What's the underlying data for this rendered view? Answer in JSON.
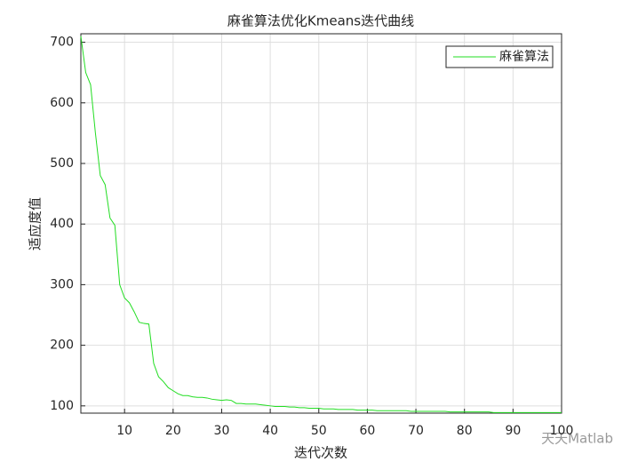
{
  "chart_data": {
    "type": "line",
    "title": "麻雀算法优化Kmeans迭代曲线",
    "x_label": "迭代次数",
    "y_label": "适应度值",
    "x": [
      1,
      2,
      3,
      4,
      5,
      6,
      7,
      8,
      9,
      10,
      11,
      12,
      13,
      14,
      15,
      16,
      17,
      18,
      19,
      20,
      21,
      22,
      23,
      24,
      25,
      26,
      27,
      28,
      29,
      30,
      31,
      32,
      33,
      34,
      35,
      36,
      37,
      38,
      39,
      40,
      41,
      42,
      43,
      44,
      45,
      46,
      47,
      48,
      49,
      50,
      51,
      52,
      53,
      54,
      55,
      56,
      57,
      58,
      59,
      60,
      61,
      62,
      63,
      64,
      65,
      66,
      67,
      68,
      69,
      70,
      71,
      72,
      73,
      74,
      75,
      76,
      77,
      78,
      79,
      80,
      81,
      82,
      83,
      84,
      85,
      86,
      87,
      88,
      89,
      90,
      91,
      92,
      93,
      94,
      95,
      96,
      97,
      98,
      99,
      100
    ],
    "series": [
      {
        "name": "麻雀算法",
        "color": "#22dd22",
        "values": [
          710,
          650,
          630,
          550,
          480,
          465,
          410,
          398,
          300,
          278,
          270,
          255,
          238,
          236,
          235,
          170,
          148,
          140,
          130,
          125,
          120,
          117,
          117,
          115,
          114,
          114,
          113,
          111,
          110,
          109,
          110,
          109,
          104,
          104,
          103,
          103,
          103,
          102,
          101,
          100,
          99,
          99,
          99,
          98,
          98,
          97,
          97,
          96,
          96,
          96,
          95,
          95,
          95,
          94,
          94,
          94,
          94,
          93,
          93,
          93,
          93,
          92,
          92,
          92,
          92,
          92,
          92,
          92,
          91,
          91,
          91,
          91,
          91,
          91,
          91,
          91,
          90,
          90,
          90,
          90,
          90,
          90,
          90,
          90,
          90,
          89,
          89,
          89,
          89,
          89,
          89,
          89,
          89,
          89,
          89,
          89,
          89,
          89,
          89,
          89
        ]
      }
    ],
    "xlim": [
      1,
      100
    ],
    "xticks": [
      10,
      20,
      30,
      40,
      50,
      60,
      70,
      80,
      90,
      100
    ],
    "ylim": [
      88,
      714
    ],
    "yticks": [
      100,
      200,
      300,
      400,
      500,
      600,
      700
    ],
    "grid": true,
    "legend": "top-right",
    "watermark": "天天Matlab"
  }
}
